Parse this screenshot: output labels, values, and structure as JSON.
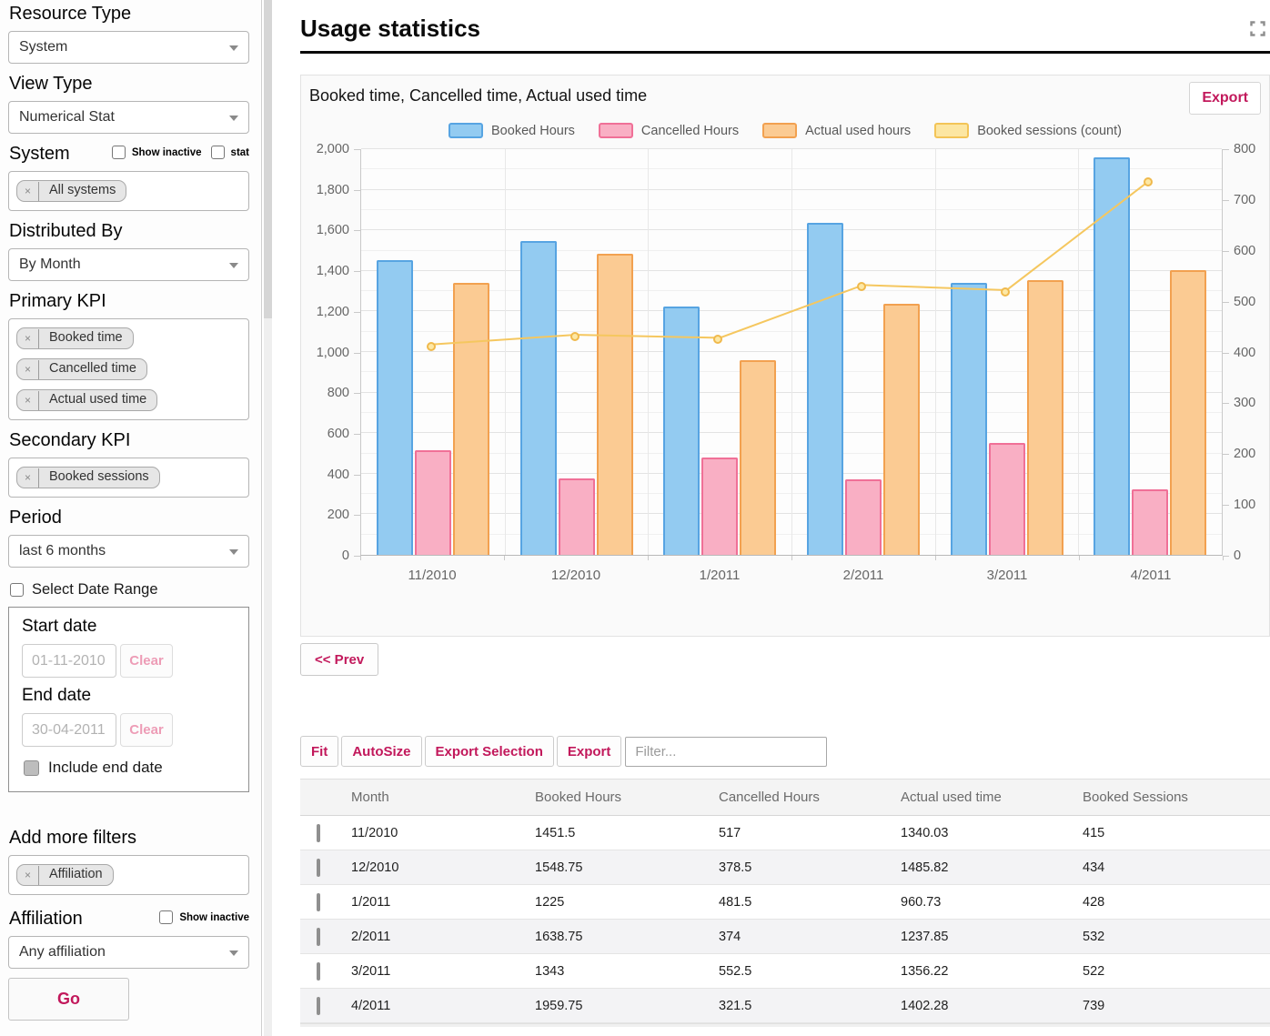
{
  "header": {
    "title": "Usage statistics"
  },
  "sidebar": {
    "resource_type": {
      "label": "Resource Type",
      "value": "System"
    },
    "view_type": {
      "label": "View Type",
      "value": "Numerical Stat"
    },
    "system": {
      "label": "System",
      "show_inactive_label": "Show inactive",
      "stat_label": "stat",
      "tags": [
        "All systems"
      ]
    },
    "distributed_by": {
      "label": "Distributed By",
      "value": "By Month"
    },
    "primary_kpi": {
      "label": "Primary KPI",
      "tags": [
        "Booked time",
        "Cancelled time",
        "Actual used time"
      ]
    },
    "secondary_kpi": {
      "label": "Secondary KPI",
      "tags": [
        "Booked sessions"
      ]
    },
    "period": {
      "label": "Period",
      "value": "last 6 months"
    },
    "date_range": {
      "checkbox_label": "Select Date Range",
      "start_label": "Start date",
      "start_value": "01-11-2010",
      "end_label": "End date",
      "end_value": "30-04-2011",
      "clear_label": "Clear",
      "include_end_label": "Include end date"
    },
    "add_filters": {
      "label": "Add more filters",
      "tags": [
        "Affiliation"
      ]
    },
    "affiliation": {
      "label": "Affiliation",
      "show_inactive_label": "Show inactive",
      "value": "Any affiliation"
    },
    "go_label": "Go"
  },
  "chart_panel": {
    "title": "Booked time, Cancelled time, Actual used time",
    "export_label": "Export",
    "prev_label": "<< Prev"
  },
  "chart_data": {
    "type": "bar",
    "categories": [
      "11/2010",
      "12/2010",
      "1/2011",
      "2/2011",
      "3/2011",
      "4/2011"
    ],
    "series": [
      {
        "name": "Booked Hours",
        "type": "bar",
        "axis": "left",
        "values": [
          1451.5,
          1548.75,
          1225,
          1638.75,
          1343,
          1959.75
        ],
        "fill": "#93CBF1",
        "stroke": "#57A4E2"
      },
      {
        "name": "Cancelled Hours",
        "type": "bar",
        "axis": "left",
        "values": [
          517,
          378.5,
          481.5,
          374,
          552.5,
          321.5
        ],
        "fill": "#F9AFC4",
        "stroke": "#F07097"
      },
      {
        "name": "Actual used hours",
        "type": "bar",
        "axis": "left",
        "values": [
          1340.03,
          1485.82,
          960.73,
          1237.85,
          1356.22,
          1402.28
        ],
        "fill": "#FBCB93",
        "stroke": "#F2A150"
      },
      {
        "name": "Booked sessions (count)",
        "type": "line",
        "axis": "right",
        "values": [
          415,
          434,
          428,
          532,
          522,
          739
        ],
        "fill": "#FCE6A2",
        "stroke": "#F3C457",
        "line_color": "#F5C75F"
      }
    ],
    "left_axis": {
      "min": 0,
      "max": 2000,
      "tick": 200,
      "minor_tick": 100
    },
    "right_axis": {
      "min": 0,
      "max": 800,
      "tick": 100
    },
    "legend_position": "top",
    "grid": true
  },
  "table": {
    "toolbar": {
      "fit_label": "Fit",
      "autosize_label": "AutoSize",
      "export_selection_label": "Export Selection",
      "export_label": "Export",
      "filter_placeholder": "Filter..."
    },
    "columns": [
      "Month",
      "Booked Hours",
      "Cancelled Hours",
      "Actual used time",
      "Booked Sessions"
    ],
    "rows": [
      [
        "11/2010",
        "1451.5",
        "517",
        "1340.03",
        "415"
      ],
      [
        "12/2010",
        "1548.75",
        "378.5",
        "1485.82",
        "434"
      ],
      [
        "1/2011",
        "1225",
        "481.5",
        "960.73",
        "428"
      ],
      [
        "2/2011",
        "1638.75",
        "374",
        "1237.85",
        "532"
      ],
      [
        "3/2011",
        "1343",
        "552.5",
        "1356.22",
        "522"
      ],
      [
        "4/2011",
        "1959.75",
        "321.5",
        "1402.28",
        "739"
      ]
    ]
  },
  "colors": {
    "accent": "#c2185b",
    "clear_pink": "#ed9cb6"
  }
}
